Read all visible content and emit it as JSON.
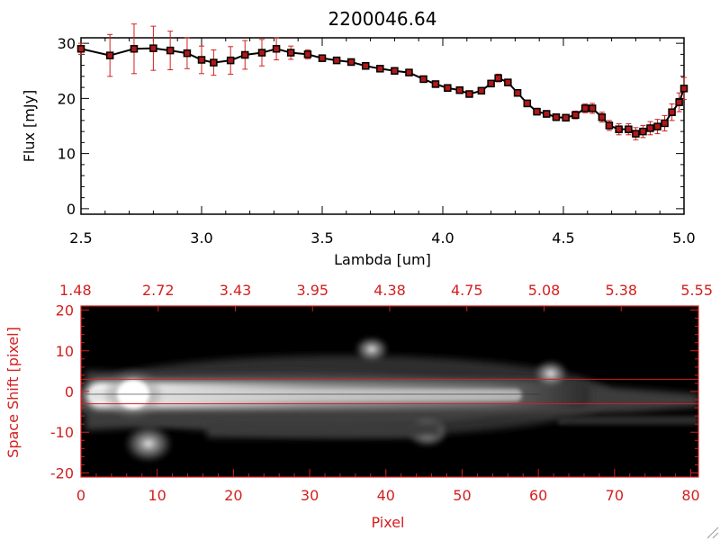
{
  "colors": {
    "black": "#000000",
    "red": "#d42020",
    "marker": "#b01818"
  },
  "chart_data": [
    {
      "type": "line",
      "title": "2200046.64",
      "xlabel": "Lambda [um]",
      "ylabel": "Flux [mJy]",
      "xlim": [
        2.5,
        5.0
      ],
      "ylim": [
        -1,
        31
      ],
      "x_ticks": [
        "2.5",
        "3.0",
        "3.5",
        "4.0",
        "4.5",
        "5.0"
      ],
      "y_ticks": [
        "0",
        "10",
        "20",
        "30"
      ],
      "series": [
        {
          "x": [
            2.5,
            2.62,
            2.72,
            2.8,
            2.87,
            2.94,
            3.0,
            3.05,
            3.12,
            3.18,
            3.25,
            3.31,
            3.37,
            3.44,
            3.5,
            3.56,
            3.62,
            3.68,
            3.74,
            3.8,
            3.86,
            3.92,
            3.97,
            4.02,
            4.07,
            4.11,
            4.16,
            4.2,
            4.23,
            4.27,
            4.31,
            4.35,
            4.39,
            4.43,
            4.47,
            4.51,
            4.55,
            4.59,
            4.62,
            4.66,
            4.69,
            4.73,
            4.77,
            4.8,
            4.83,
            4.86,
            4.89,
            4.92,
            4.95,
            4.98,
            5.0
          ],
          "y": [
            29.0,
            27.8,
            29.0,
            29.1,
            28.7,
            28.2,
            27.0,
            26.5,
            26.9,
            27.9,
            28.3,
            29.0,
            28.3,
            28.0,
            27.3,
            26.9,
            26.6,
            25.9,
            25.4,
            25.0,
            24.7,
            23.5,
            22.6,
            21.9,
            21.5,
            20.8,
            21.4,
            22.7,
            23.7,
            22.9,
            21.0,
            19.1,
            17.6,
            17.2,
            16.6,
            16.5,
            17.0,
            18.2,
            18.2,
            16.6,
            15.1,
            14.4,
            14.4,
            13.6,
            14.0,
            14.6,
            14.9,
            15.5,
            17.5,
            19.3,
            21.8
          ],
          "err": [
            1.0,
            3.8,
            4.5,
            4.0,
            3.5,
            2.8,
            2.5,
            2.3,
            2.5,
            2.6,
            2.4,
            2.0,
            1.2,
            0.8,
            0.6,
            0.5,
            0.5,
            0.5,
            0.5,
            0.5,
            0.5,
            0.5,
            0.5,
            0.5,
            0.5,
            0.5,
            0.5,
            0.6,
            0.7,
            0.6,
            0.6,
            0.6,
            0.6,
            0.6,
            0.6,
            0.6,
            0.7,
            0.8,
            0.9,
            0.9,
            0.9,
            1.0,
            1.0,
            1.1,
            1.1,
            1.2,
            1.3,
            1.4,
            1.5,
            1.7,
            2.0
          ]
        }
      ]
    },
    {
      "type": "heatmap",
      "xlabel": "Pixel",
      "ylabel": "Space Shift [pixel]",
      "xlim": [
        0,
        81
      ],
      "ylim": [
        -21,
        21
      ],
      "x_ticks": [
        "0",
        "10",
        "20",
        "30",
        "40",
        "50",
        "60",
        "70",
        "80"
      ],
      "y_ticks": [
        "-20",
        "-10",
        "0",
        "10",
        "20"
      ],
      "top_axis_ticks": [
        "1.48",
        "2.72",
        "3.43",
        "3.95",
        "4.38",
        "4.75",
        "5.08",
        "5.38",
        "5.55"
      ],
      "aperture_lines": [
        3,
        -3
      ]
    }
  ]
}
